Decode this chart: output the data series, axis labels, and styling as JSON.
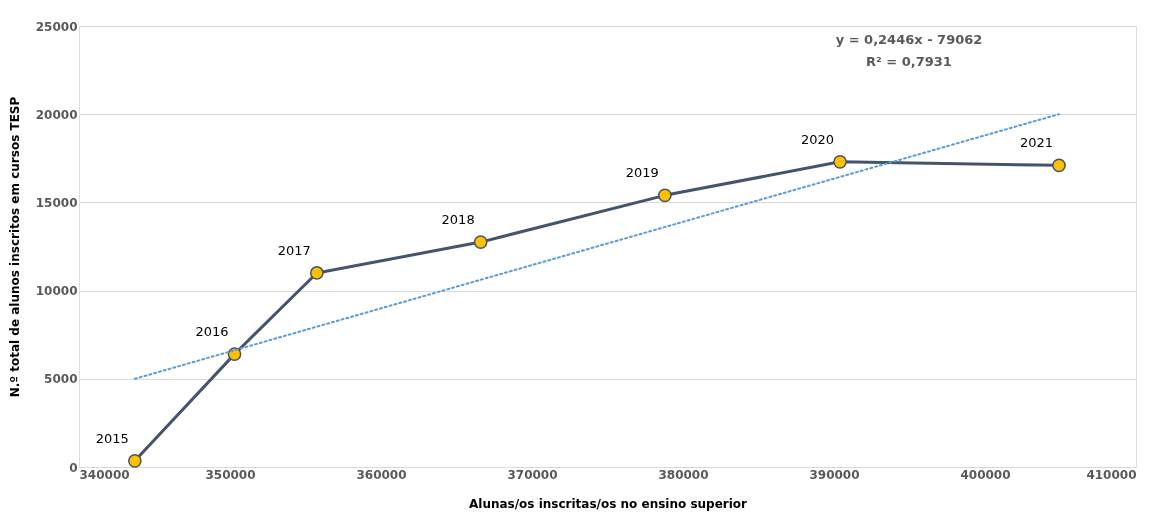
{
  "chart_data": {
    "type": "line",
    "xlabel": "Alunas/os inscritas/os no ensino superior",
    "ylabel": "N.º total de alunos inscritos em cursos TESP",
    "x": [
      343700,
      350300,
      355750,
      366600,
      378800,
      390400,
      404900
    ],
    "series": [
      {
        "color": "#44546a",
        "marker": "circle",
        "colors": [
          "#ffc000",
          "#ffc000",
          "#ffc000",
          "#ffc000",
          "#ffc000",
          "#ffc000",
          "#ffc000"
        ],
        "line_style": "solid",
        "values": [
          350,
          6400,
          11000,
          12750,
          15400,
          17300,
          17100
        ]
      },
      {
        "color": "#5b9bd5",
        "marker": "none",
        "line_style": "dotted",
        "x": [
          343700,
          404900
        ],
        "values": [
          5000,
          20000
        ]
      }
    ],
    "annotations": [
      {
        "text": "2015",
        "x": 343700,
        "y": 350
      },
      {
        "text": "2016",
        "x": 350300,
        "y": 6400
      },
      {
        "text": "2017",
        "x": 355750,
        "y": 11000
      },
      {
        "text": "2018",
        "x": 366600,
        "y": 12750
      },
      {
        "text": "2019",
        "x": 378800,
        "y": 15400
      },
      {
        "text": "2020",
        "x": 390400,
        "y": 17300
      },
      {
        "text": "2021",
        "x": 404900,
        "y": 17100
      },
      "y = 0,2446x - 79062",
      "R² = 0,7931"
    ],
    "xlim": [
      340000,
      410000
    ],
    "xticks": [
      340000,
      350000,
      360000,
      370000,
      380000,
      390000,
      400000,
      410000
    ],
    "ylim": [
      0,
      25000
    ],
    "yticks": [
      0,
      5000,
      10000,
      15000,
      20000,
      25000
    ],
    "grid": "y"
  }
}
